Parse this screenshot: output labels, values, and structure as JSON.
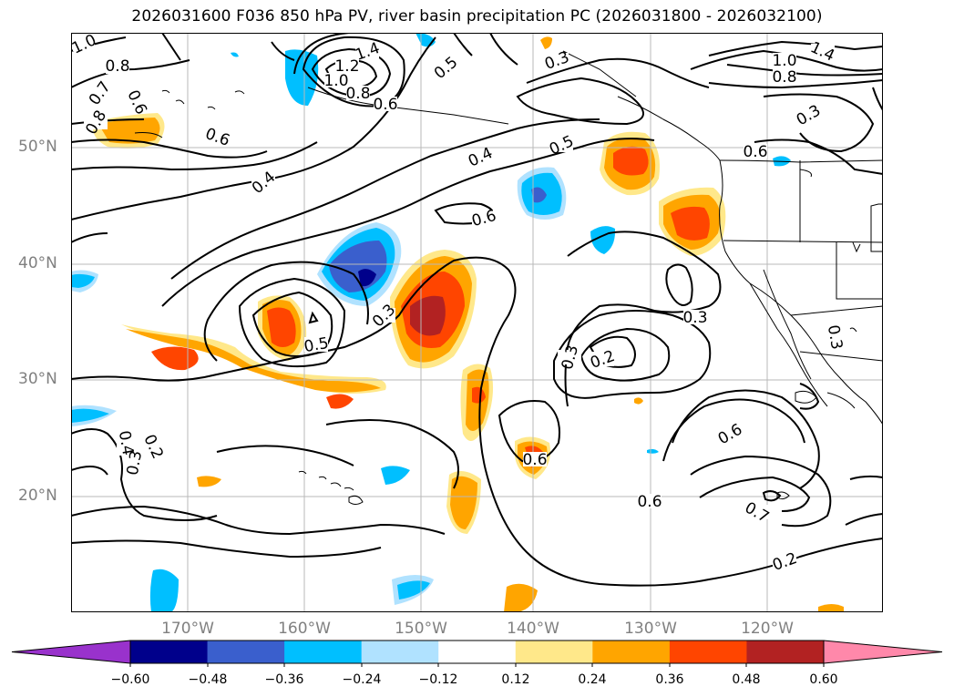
{
  "title": "2026031600 F036 850 hPa PV, river basin precipitation PC (2026031800 - 2026032100)",
  "axes": {
    "lat_labels": [
      "50°N",
      "40°N",
      "30°N",
      "20°N"
    ],
    "lon_labels": [
      "170°W",
      "160°W",
      "150°W",
      "140°W",
      "130°W",
      "120°W"
    ]
  },
  "colorbar": {
    "ticks": [
      "−0.60",
      "−0.48",
      "−0.36",
      "−0.24",
      "−0.12",
      "0.12",
      "0.24",
      "0.36",
      "0.48",
      "0.60"
    ],
    "colors": [
      "#9932cc",
      "#00008b",
      "#3a5fcd",
      "#00bfff",
      "#b0e2ff",
      "#ffffff",
      "#ffe88a",
      "#ffa500",
      "#ff4500",
      "#b22222",
      "#ff88aa"
    ]
  },
  "contour_labels": {
    "l1": "1.0",
    "l2": "0.8",
    "l3": "0.7",
    "l4": "0.6",
    "l5": "0.8",
    "l6": "0.6",
    "l7": "1.4",
    "l8": "1.2",
    "l9": "1.0",
    "l10": "0.8",
    "l11": "0.6",
    "l12": "0.5",
    "l13": "0.3",
    "l14": "1.0",
    "l15": "1.4",
    "l16": "0.8",
    "l17": "0.3",
    "l18": "0.5",
    "l19": "0.4",
    "l20": "0.4",
    "l21": "0.6",
    "l22": "0.6",
    "l23": "0.5",
    "l24": "0.3",
    "l25": "0.3",
    "l26": "0.3",
    "l27": "0.2",
    "l28": "0.3",
    "l29": "0.4",
    "l30": "0.3",
    "l31": "0.2",
    "l32": "0.6",
    "l33": "0.6",
    "l34": "0.6",
    "l35": "0.7",
    "l36": "0.2"
  }
}
